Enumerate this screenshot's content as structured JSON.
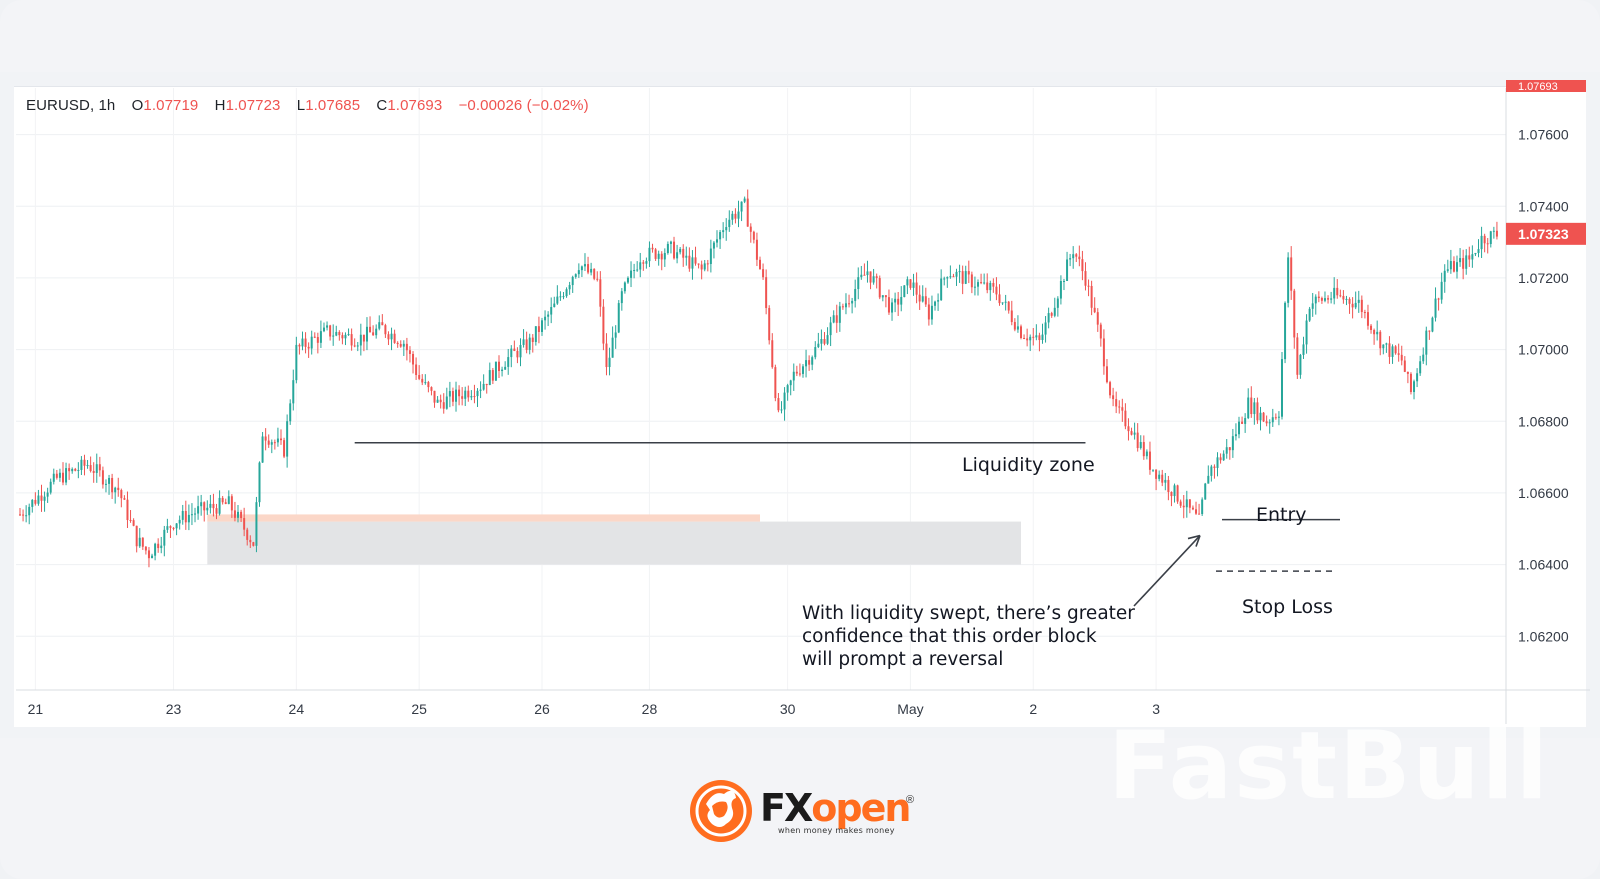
{
  "legend": {
    "symbol": "EURUSD, 1h",
    "o_label": "O",
    "o_value": "1.07719",
    "h_label": "H",
    "h_value": "1.07723",
    "l_label": "L",
    "l_value": "1.07685",
    "c_label": "C",
    "c_value": "1.07693",
    "change": "−0.00026 (−0.02%)"
  },
  "annotations": {
    "liquidity_zone": "Liquidity zone",
    "entry": "Entry",
    "stop_loss": "Stop Loss",
    "note_line1": "With liquidity swept, there’s greater",
    "note_line2": "confidence that this order block",
    "note_line3": "will prompt a reversal"
  },
  "watermark": "FastBull",
  "logo": {
    "brand_fx": "FX",
    "brand_open": "open",
    "registered": "®",
    "tagline": "when money makes money"
  },
  "colors": {
    "up": "#26a69a",
    "down": "#ef5350",
    "price_label": "#ef5350",
    "zone_gray": "#e3e4e6",
    "zone_orange": "#fbd7c8",
    "brand_orange": "#ff6d1f"
  },
  "chart_data": {
    "type": "candlestick",
    "symbol": "EURUSD",
    "timeframe": "1h",
    "ylim": [
      1.0605,
      1.0773
    ],
    "yticks": [
      "1.07600",
      "1.07400",
      "1.07200",
      "1.07000",
      "1.06800",
      "1.06600",
      "1.06400",
      "1.06200"
    ],
    "xticks": [
      "21",
      "23",
      "24",
      "25",
      "26",
      "28",
      "30",
      "May",
      "2",
      "3"
    ],
    "last_price": "1.07323",
    "top_price_cut": "1.07693",
    "close_path": [
      [
        0,
        1.0654
      ],
      [
        12,
        1.0664
      ],
      [
        22,
        1.0668
      ],
      [
        32,
        1.0661
      ],
      [
        38,
        1.0647
      ],
      [
        42,
        1.0643
      ],
      [
        50,
        1.0652
      ],
      [
        58,
        1.0655
      ],
      [
        68,
        1.0657
      ],
      [
        76,
        1.0646
      ],
      [
        79,
        1.0677
      ],
      [
        86,
        1.0672
      ],
      [
        90,
        1.07
      ],
      [
        100,
        1.0705
      ],
      [
        110,
        1.0703
      ],
      [
        118,
        1.0706
      ],
      [
        125,
        1.0702
      ],
      [
        130,
        1.0692
      ],
      [
        136,
        1.0685
      ],
      [
        142,
        1.0687
      ],
      [
        150,
        1.069
      ],
      [
        158,
        1.0697
      ],
      [
        166,
        1.0702
      ],
      [
        174,
        1.0712
      ],
      [
        182,
        1.0724
      ],
      [
        188,
        1.0719
      ],
      [
        191,
        1.0694
      ],
      [
        196,
        1.0715
      ],
      [
        202,
        1.0726
      ],
      [
        212,
        1.0728
      ],
      [
        222,
        1.0722
      ],
      [
        230,
        1.0736
      ],
      [
        236,
        1.074
      ],
      [
        242,
        1.0719
      ],
      [
        247,
        1.0681
      ],
      [
        252,
        1.0693
      ],
      [
        260,
        1.0701
      ],
      [
        268,
        1.0712
      ],
      [
        276,
        1.0722
      ],
      [
        284,
        1.0711
      ],
      [
        290,
        1.0719
      ],
      [
        296,
        1.071
      ],
      [
        302,
        1.0722
      ],
      [
        310,
        1.0719
      ],
      [
        318,
        1.0716
      ],
      [
        326,
        1.0705
      ],
      [
        332,
        1.0702
      ],
      [
        338,
        1.0716
      ],
      [
        343,
        1.0728
      ],
      [
        347,
        1.072
      ],
      [
        352,
        1.0702
      ],
      [
        356,
        1.0684
      ],
      [
        362,
        1.0678
      ],
      [
        368,
        1.0668
      ],
      [
        376,
        1.066
      ],
      [
        384,
        1.0652
      ],
      [
        387,
        1.0666
      ],
      [
        394,
        1.0673
      ],
      [
        400,
        1.0685
      ],
      [
        406,
        1.068
      ],
      [
        410,
        1.0683
      ],
      [
        413,
        1.0726
      ],
      [
        416,
        1.0693
      ],
      [
        420,
        1.0713
      ],
      [
        428,
        1.0715
      ],
      [
        436,
        1.0713
      ],
      [
        444,
        1.0701
      ],
      [
        450,
        1.0697
      ],
      [
        453,
        1.0688
      ],
      [
        458,
        1.0704
      ],
      [
        464,
        1.0722
      ],
      [
        472,
        1.0725
      ],
      [
        476,
        1.0731
      ],
      [
        480,
        1.0732
      ]
    ],
    "liquidity_zone_price": 1.0674,
    "order_block_gray": [
      1.064,
      1.0652
    ],
    "order_block_orange": [
      1.0652,
      1.0654
    ],
    "entry_price": 1.0652,
    "stop_loss_price": 1.0639
  }
}
